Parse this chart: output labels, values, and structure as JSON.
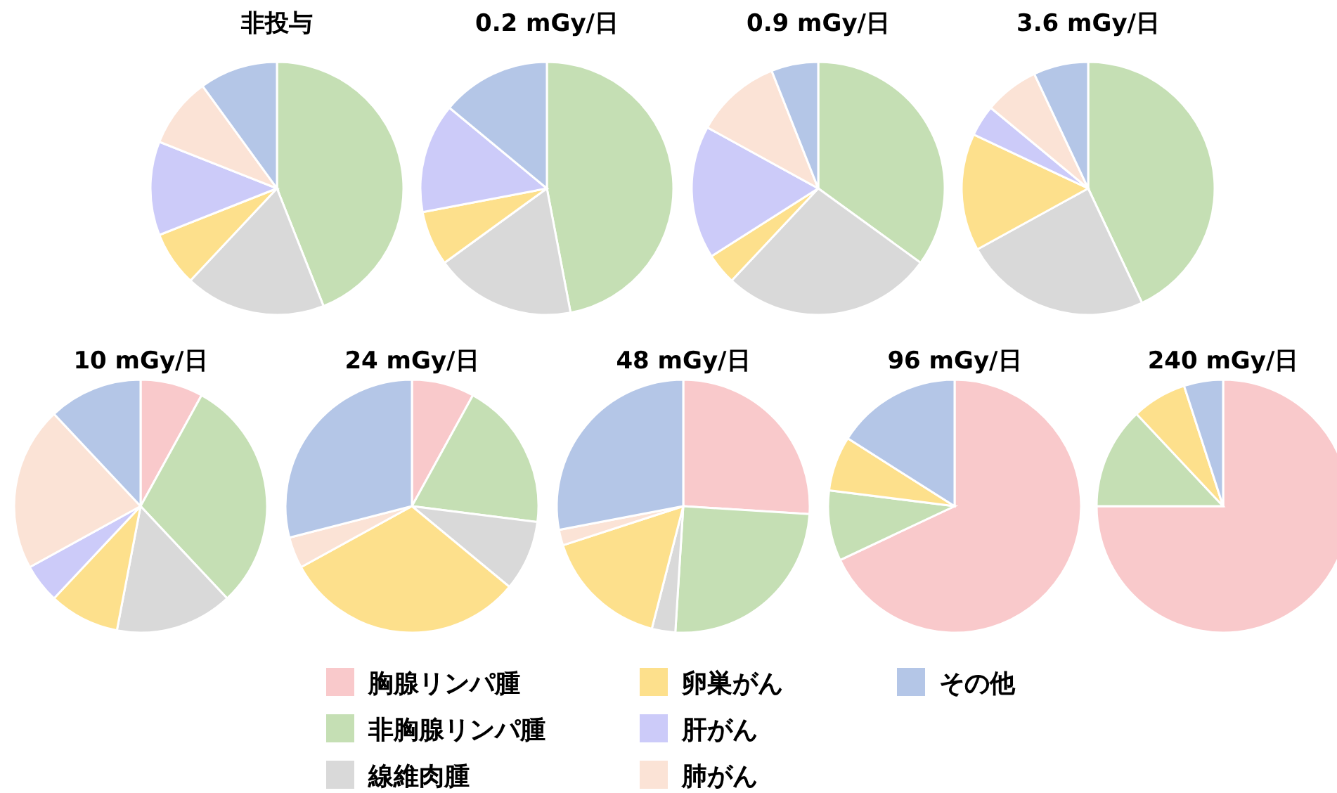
{
  "chart_data": {
    "type": "pie",
    "legend": "bottom",
    "categories": [
      "胸腺リンパ腫",
      "非胸腺リンパ腫",
      "線維肉腫",
      "卵巣がん",
      "肝がん",
      "肺がん",
      "その他"
    ],
    "colors": [
      "#f9c9cb",
      "#c5dfb4",
      "#d9d9d9",
      "#fde08c",
      "#cccbf9",
      "#fbe3d6",
      "#b4c6e7"
    ],
    "series": [
      {
        "name": "非投与",
        "values": [
          0,
          44,
          18,
          7,
          12,
          9,
          10
        ]
      },
      {
        "name": "0.2 mGy/日",
        "values": [
          0,
          47,
          18,
          7,
          14,
          0,
          14
        ]
      },
      {
        "name": "0.9 mGy/日",
        "values": [
          0,
          35,
          27,
          4,
          17,
          11,
          6
        ]
      },
      {
        "name": "3.6 mGy/日",
        "values": [
          0,
          43,
          24,
          15,
          4,
          7,
          7
        ]
      },
      {
        "name": "10 mGy/日",
        "values": [
          8,
          30,
          15,
          9,
          5,
          21,
          12
        ]
      },
      {
        "name": "24 mGy/日",
        "values": [
          8,
          19,
          9,
          31,
          0,
          4,
          29
        ]
      },
      {
        "name": "48 mGy/日",
        "values": [
          26,
          25,
          3,
          16,
          0,
          2,
          28
        ]
      },
      {
        "name": "96 mGy/日",
        "values": [
          68,
          9,
          0,
          7,
          0,
          0,
          16
        ]
      },
      {
        "name": "240 mGy/日",
        "values": [
          75,
          13,
          0,
          7,
          0,
          0,
          5
        ]
      }
    ]
  }
}
